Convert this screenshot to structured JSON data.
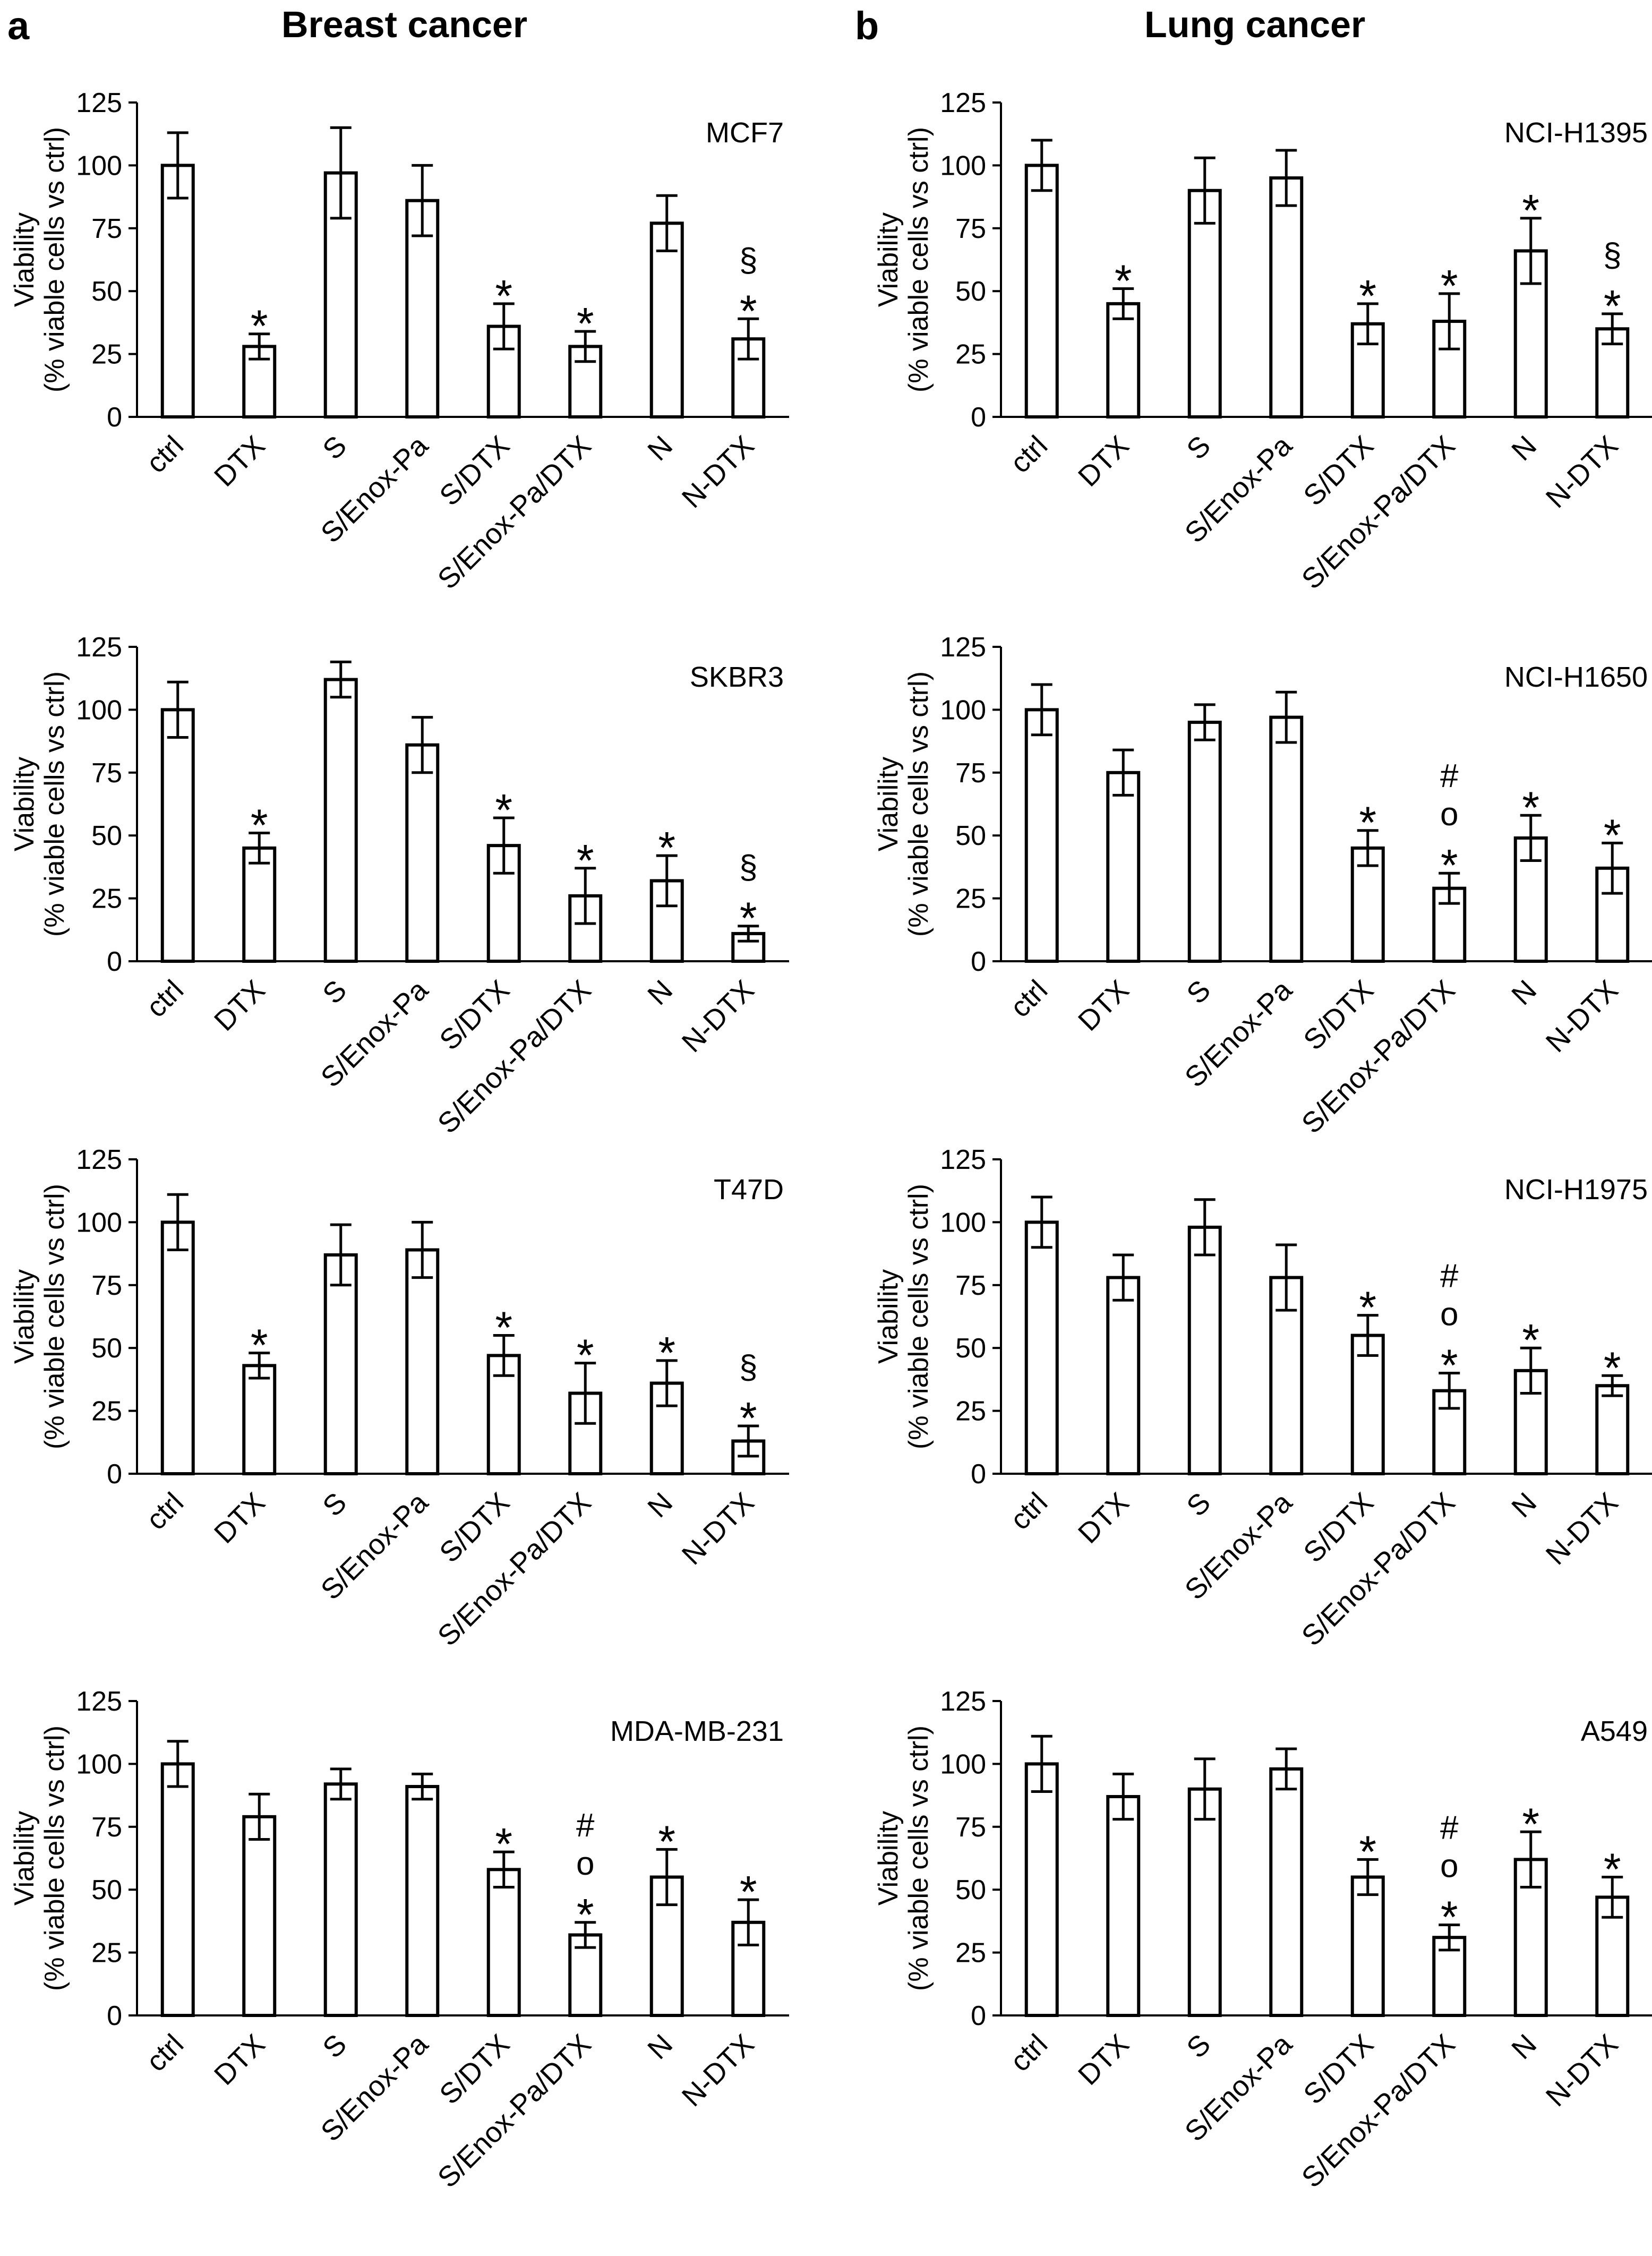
{
  "panel_labels": {
    "a": "a",
    "b": "b"
  },
  "column_titles": {
    "left": "Breast cancer",
    "right": "Lung cancer"
  },
  "chart_data": [
    {
      "type": "bar",
      "column": "a",
      "cell_line": "MCF7",
      "ylabel_line1": "Viability",
      "ylabel_line2": "(% viable cells vs ctrl)",
      "ylim": [
        0,
        125
      ],
      "yticks": [
        0,
        25,
        50,
        75,
        100,
        125
      ],
      "categories": [
        "ctrl",
        "DTX",
        "S",
        "S/Enox-Pa",
        "S/DTX",
        "S/Enox-Pa/DTX",
        "N",
        "N-DTX"
      ],
      "values": [
        100,
        28,
        97,
        86,
        36,
        28,
        77,
        31
      ],
      "errors": [
        13,
        5,
        18,
        14,
        9,
        6,
        11,
        8
      ],
      "annotations": [
        [],
        [
          "*"
        ],
        [],
        [],
        [
          "*"
        ],
        [
          "*"
        ],
        [],
        [
          "*",
          "§"
        ]
      ]
    },
    {
      "type": "bar",
      "column": "a",
      "cell_line": "SKBR3",
      "ylabel_line1": "Viability",
      "ylabel_line2": "(% viable cells vs ctrl)",
      "ylim": [
        0,
        125
      ],
      "yticks": [
        0,
        25,
        50,
        75,
        100,
        125
      ],
      "categories": [
        "ctrl",
        "DTX",
        "S",
        "S/Enox-Pa",
        "S/DTX",
        "S/Enox-Pa/DTX",
        "N",
        "N-DTX"
      ],
      "values": [
        100,
        45,
        112,
        86,
        46,
        26,
        32,
        11
      ],
      "errors": [
        11,
        6,
        7,
        11,
        11,
        11,
        10,
        3
      ],
      "annotations": [
        [],
        [
          "*"
        ],
        [],
        [],
        [
          "*"
        ],
        [
          "*"
        ],
        [
          "*"
        ],
        [
          "*",
          "§"
        ]
      ]
    },
    {
      "type": "bar",
      "column": "a",
      "cell_line": "T47D",
      "ylabel_line1": "Viability",
      "ylabel_line2": "(% viable cells vs ctrl)",
      "ylim": [
        0,
        125
      ],
      "yticks": [
        0,
        25,
        50,
        75,
        100,
        125
      ],
      "categories": [
        "ctrl",
        "DTX",
        "S",
        "S/Enox-Pa",
        "S/DTX",
        "S/Enox-Pa/DTX",
        "N",
        "N-DTX"
      ],
      "values": [
        100,
        43,
        87,
        89,
        47,
        32,
        36,
        13
      ],
      "errors": [
        11,
        5,
        12,
        11,
        8,
        12,
        9,
        6
      ],
      "annotations": [
        [],
        [
          "*"
        ],
        [],
        [],
        [
          "*"
        ],
        [
          "*"
        ],
        [
          "*"
        ],
        [
          "*",
          "§"
        ]
      ]
    },
    {
      "type": "bar",
      "column": "a",
      "cell_line": "MDA-MB-231",
      "ylabel_line1": "Viability",
      "ylabel_line2": "(% viable cells vs ctrl)",
      "ylim": [
        0,
        125
      ],
      "yticks": [
        0,
        25,
        50,
        75,
        100,
        125
      ],
      "categories": [
        "ctrl",
        "DTX",
        "S",
        "S/Enox-Pa",
        "S/DTX",
        "S/Enox-Pa/DTX",
        "N",
        "N-DTX"
      ],
      "values": [
        100,
        79,
        92,
        91,
        58,
        32,
        55,
        37
      ],
      "errors": [
        9,
        9,
        6,
        5,
        7,
        5,
        11,
        9
      ],
      "annotations": [
        [],
        [],
        [],
        [],
        [
          "*"
        ],
        [
          "*",
          "o",
          "#"
        ],
        [
          "*"
        ],
        [
          "*"
        ]
      ]
    },
    {
      "type": "bar",
      "column": "b",
      "cell_line": "NCI-H1395",
      "ylabel_line1": "Viability",
      "ylabel_line2": "(% viable cells vs ctrl)",
      "ylim": [
        0,
        125
      ],
      "yticks": [
        0,
        25,
        50,
        75,
        100,
        125
      ],
      "categories": [
        "ctrl",
        "DTX",
        "S",
        "S/Enox-Pa",
        "S/DTX",
        "S/Enox-Pa/DTX",
        "N",
        "N-DTX"
      ],
      "values": [
        100,
        45,
        90,
        95,
        37,
        38,
        66,
        35
      ],
      "errors": [
        10,
        6,
        13,
        11,
        8,
        11,
        13,
        6
      ],
      "annotations": [
        [],
        [
          "*"
        ],
        [],
        [],
        [
          "*"
        ],
        [
          "*"
        ],
        [
          "*"
        ],
        [
          "*",
          "§"
        ]
      ]
    },
    {
      "type": "bar",
      "column": "b",
      "cell_line": "NCI-H1650",
      "ylabel_line1": "Viability",
      "ylabel_line2": "(% viable cells vs ctrl)",
      "ylim": [
        0,
        125
      ],
      "yticks": [
        0,
        25,
        50,
        75,
        100,
        125
      ],
      "categories": [
        "ctrl",
        "DTX",
        "S",
        "S/Enox-Pa",
        "S/DTX",
        "S/Enox-Pa/DTX",
        "N",
        "N-DTX"
      ],
      "values": [
        100,
        75,
        95,
        97,
        45,
        29,
        49,
        37
      ],
      "errors": [
        10,
        9,
        7,
        10,
        7,
        6,
        9,
        10
      ],
      "annotations": [
        [],
        [],
        [],
        [],
        [
          "*"
        ],
        [
          "*",
          "o",
          "#"
        ],
        [
          "*"
        ],
        [
          "*"
        ]
      ]
    },
    {
      "type": "bar",
      "column": "b",
      "cell_line": "NCI-H1975",
      "ylabel_line1": "Viability",
      "ylabel_line2": "(% viable cells vs ctrl)",
      "ylim": [
        0,
        125
      ],
      "yticks": [
        0,
        25,
        50,
        75,
        100,
        125
      ],
      "categories": [
        "ctrl",
        "DTX",
        "S",
        "S/Enox-Pa",
        "S/DTX",
        "S/Enox-Pa/DTX",
        "N",
        "N-DTX"
      ],
      "values": [
        100,
        78,
        98,
        78,
        55,
        33,
        41,
        35
      ],
      "errors": [
        10,
        9,
        11,
        13,
        8,
        7,
        9,
        4
      ],
      "annotations": [
        [],
        [],
        [],
        [],
        [
          "*"
        ],
        [
          "*",
          "o",
          "#"
        ],
        [
          "*"
        ],
        [
          "*"
        ]
      ]
    },
    {
      "type": "bar",
      "column": "b",
      "cell_line": "A549",
      "ylabel_line1": "Viability",
      "ylabel_line2": "(% viable cells vs ctrl)",
      "ylim": [
        0,
        125
      ],
      "yticks": [
        0,
        25,
        50,
        75,
        100,
        125
      ],
      "categories": [
        "ctrl",
        "DTX",
        "S",
        "S/Enox-Pa",
        "S/DTX",
        "S/Enox-Pa/DTX",
        "N",
        "N-DTX"
      ],
      "values": [
        100,
        87,
        90,
        98,
        55,
        31,
        62,
        47
      ],
      "errors": [
        11,
        9,
        12,
        8,
        7,
        5,
        11,
        8
      ],
      "annotations": [
        [],
        [],
        [],
        [],
        [
          "*"
        ],
        [
          "*",
          "o",
          "#"
        ],
        [
          "*"
        ],
        [
          "*"
        ]
      ]
    }
  ]
}
